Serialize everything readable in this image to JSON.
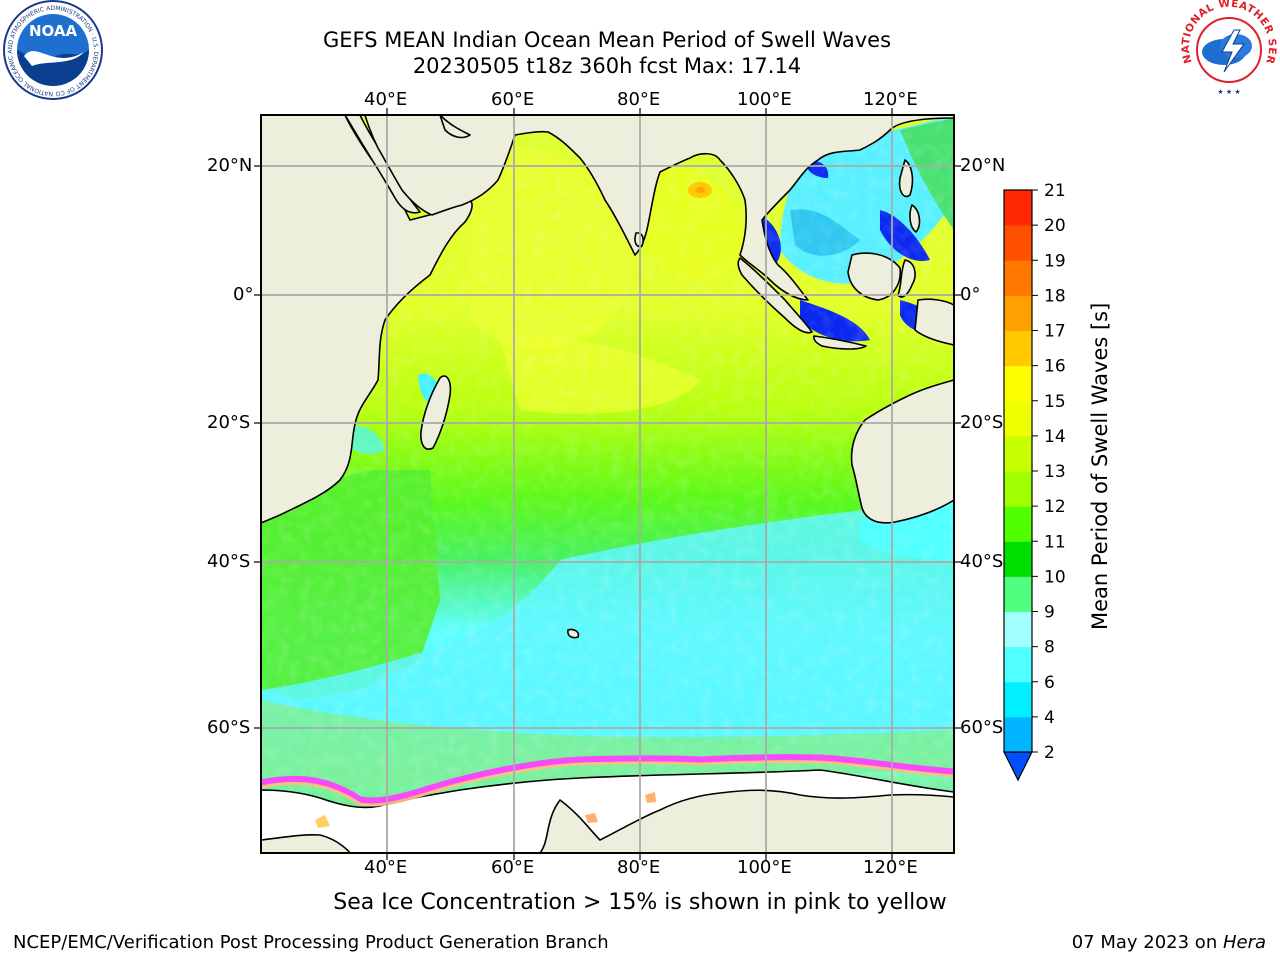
{
  "title": {
    "line1": "GEFS MEAN Indian Ocean Mean Period of Swell Waves",
    "line2": "20230505 t18z 360h fcst   Max: 17.14"
  },
  "map": {
    "lon_labels": [
      "40°E",
      "60°E",
      "80°E",
      "100°E",
      "120°E"
    ],
    "lat_labels": [
      "20°N",
      "0°",
      "20°S",
      "40°S",
      "60°S"
    ]
  },
  "colorbar": {
    "label": "Mean Period of Swell Waves [s]",
    "ticks": [
      "2",
      "4",
      "6",
      "8",
      "9",
      "10",
      "11",
      "12",
      "13",
      "14",
      "15",
      "16",
      "17",
      "18",
      "19",
      "20",
      "21"
    ],
    "colors": [
      "#0050ff",
      "#00b4ff",
      "#00f0ff",
      "#50ffff",
      "#a0ffff",
      "#50ff80",
      "#00e000",
      "#50ff00",
      "#a0ff00",
      "#c8ff00",
      "#f0ff00",
      "#ffff00",
      "#ffc800",
      "#ffa000",
      "#ff7800",
      "#ff5000",
      "#ff2800",
      "#ff0000"
    ]
  },
  "logos": {
    "noaa_text": "NOAA",
    "noaa_ring": "NATIONAL OCEANIC AND ATMOSPHERIC ADMINISTRATION · U.S. DEPARTMENT OF COMMERCE",
    "nws_ring": "NATIONAL WEATHER SERVICE"
  },
  "footer": {
    "sea_ice_note": "Sea Ice Concentration > 15% is shown in pink to yellow",
    "credit": "NCEP/EMC/Verification Post Processing Product Generation Branch",
    "date": "07 May 2023 on ",
    "host": "Hera"
  }
}
